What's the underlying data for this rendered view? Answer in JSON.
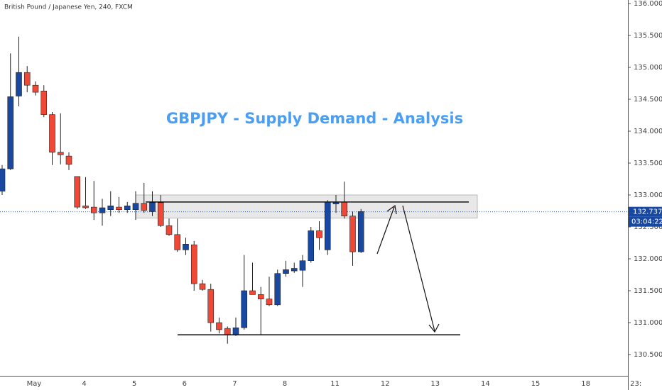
{
  "chart_data": {
    "type": "candlestick",
    "title": "British Pound / Japanese Yen, 240, FXCM",
    "annotation": "GBPJPY - Supply Demand - Analysis",
    "up_color": "#1848a0",
    "down_color": "#ef4836",
    "open": [
      133.06,
      133.41,
      134.55,
      134.92,
      134.72,
      134.63,
      134.26,
      133.67,
      133.61,
      133.29,
      132.83,
      132.81,
      132.72,
      132.77,
      132.81,
      132.77,
      132.77,
      132.87,
      132.74,
      132.88,
      132.52,
      132.38,
      132.14,
      132.22,
      131.61,
      131.52,
      131.0,
      130.91,
      130.81,
      130.92,
      131.5,
      131.44,
      131.37,
      131.28,
      131.77,
      131.81,
      131.82,
      131.97,
      132.44,
      132.14,
      132.86,
      132.89,
      132.67,
      132.11
    ],
    "high": [
      133.47,
      135.22,
      135.48,
      135.02,
      134.78,
      134.72,
      134.3,
      134.28,
      133.67,
      133.29,
      133.28,
      133.22,
      132.94,
      133.06,
      132.97,
      132.89,
      133.06,
      133.19,
      133.06,
      133.0,
      132.63,
      132.63,
      132.33,
      132.28,
      131.67,
      131.61,
      131.08,
      130.94,
      131.08,
      132.06,
      131.94,
      131.56,
      131.72,
      131.83,
      131.97,
      131.94,
      132.06,
      132.5,
      132.59,
      132.92,
      133.0,
      133.21,
      132.74,
      132.78
    ],
    "low": [
      133.0,
      133.39,
      134.39,
      134.61,
      134.56,
      134.22,
      133.47,
      133.48,
      133.39,
      132.78,
      132.78,
      132.61,
      132.52,
      132.67,
      132.72,
      132.72,
      132.61,
      132.72,
      132.67,
      132.5,
      132.36,
      132.11,
      132.06,
      131.5,
      131.5,
      130.86,
      130.83,
      130.67,
      130.79,
      130.89,
      131.44,
      130.81,
      131.26,
      131.26,
      131.72,
      131.78,
      131.56,
      131.94,
      132.14,
      132.06,
      132.72,
      132.63,
      131.89,
      132.09
    ],
    "close": [
      133.41,
      134.54,
      134.92,
      134.72,
      134.61,
      134.26,
      133.67,
      133.63,
      133.48,
      132.81,
      132.8,
      132.72,
      132.8,
      132.83,
      132.77,
      132.83,
      132.87,
      132.76,
      132.88,
      132.52,
      132.38,
      132.14,
      132.23,
      131.61,
      131.52,
      131.0,
      130.89,
      130.81,
      130.92,
      131.5,
      131.44,
      131.37,
      131.28,
      131.77,
      131.83,
      131.85,
      131.97,
      132.44,
      132.33,
      132.89,
      132.89,
      132.67,
      132.11,
      132.74
    ],
    "ylim": [
      130.2,
      136.05
    ],
    "yticks": [
      {
        "value": 130.5,
        "label": "130.500"
      },
      {
        "value": 131.0,
        "label": "131.000"
      },
      {
        "value": 131.5,
        "label": "131.500"
      },
      {
        "value": 132.0,
        "label": "132.000"
      },
      {
        "value": 132.5,
        "label": "132.500"
      },
      {
        "value": 133.0,
        "label": "133.000"
      },
      {
        "value": 133.5,
        "label": "133.500"
      },
      {
        "value": 134.0,
        "label": "134.000"
      },
      {
        "value": 134.5,
        "label": "134.500"
      },
      {
        "value": 135.0,
        "label": "135.000"
      },
      {
        "value": 135.5,
        "label": "135.500"
      },
      {
        "value": 136.0,
        "label": "136.000"
      }
    ],
    "xtick_labels": [
      "May",
      "4",
      "5",
      "6",
      "7",
      "8",
      "11",
      "12",
      "13",
      "14",
      "15",
      "18",
      "23:"
    ],
    "supply_zone": [
      133.0,
      132.64
    ],
    "resistance": 132.89,
    "support": 130.81,
    "last_price": 132.737,
    "countdown": "03:04:22"
  }
}
